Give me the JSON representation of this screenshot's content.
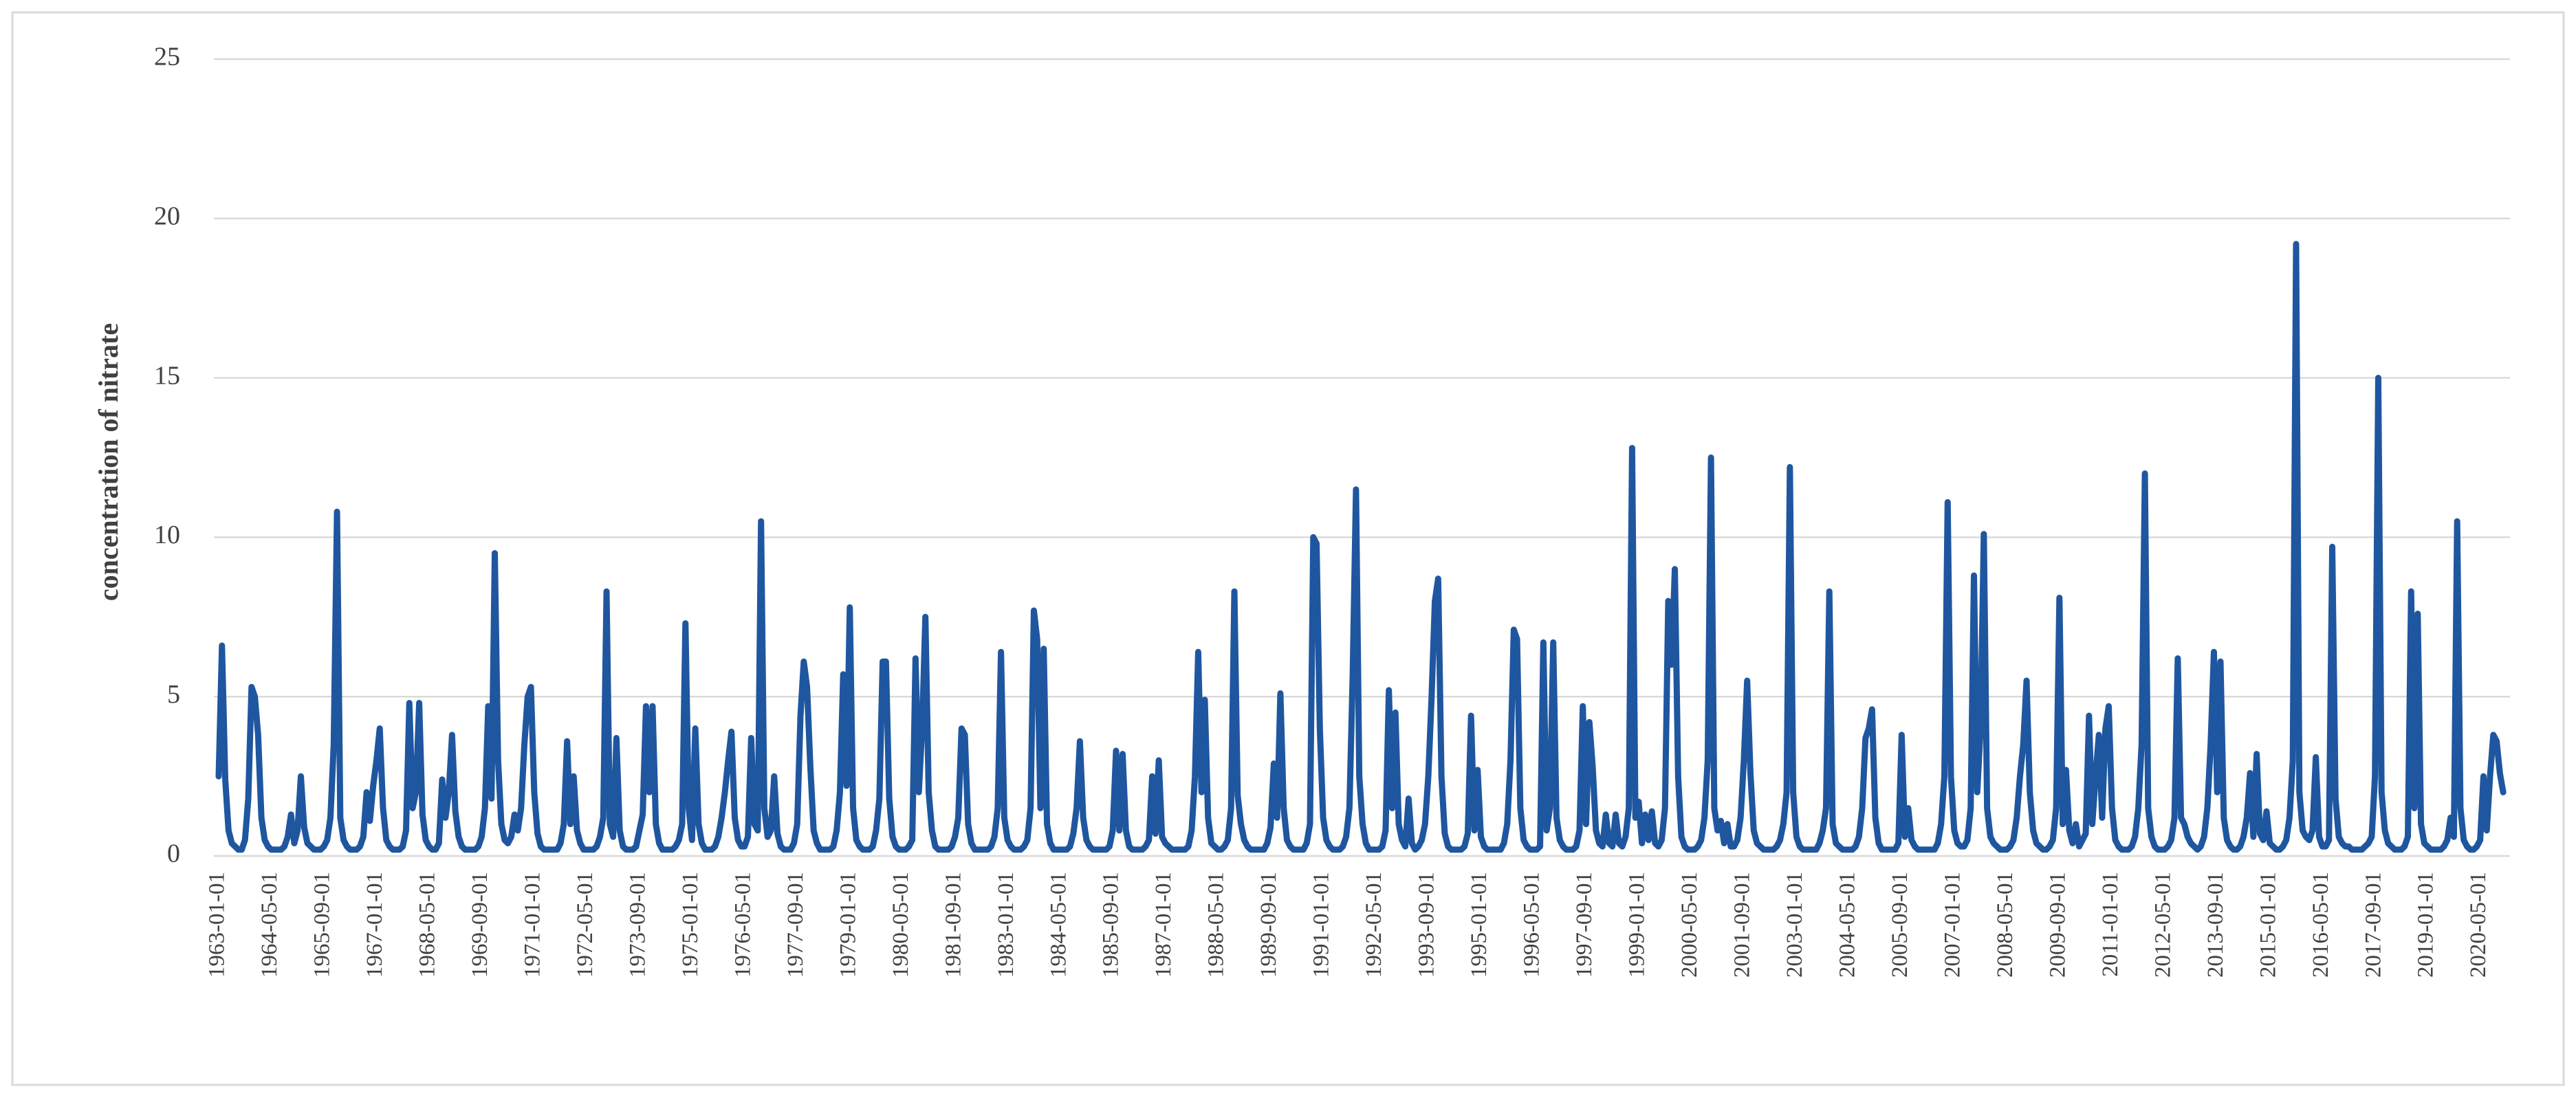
{
  "chart_data": {
    "type": "line",
    "ylabel": "concentration of nitrate",
    "color": "#1f56a0",
    "grid": true,
    "ylim": [
      0,
      25
    ],
    "yticks": [
      0,
      5,
      10,
      15,
      20,
      25
    ],
    "categories": [
      "1963-01-01",
      null,
      null,
      null,
      null,
      null,
      null,
      null,
      null,
      null,
      null,
      null,
      null,
      null,
      null,
      null,
      "1964-05-01",
      null,
      null,
      null,
      null,
      null,
      null,
      null,
      null,
      null,
      null,
      null,
      null,
      null,
      null,
      null,
      "1965-09-01",
      null,
      null,
      null,
      null,
      null,
      null,
      null,
      null,
      null,
      null,
      null,
      null,
      null,
      null,
      null,
      "1967-01-01",
      null,
      null,
      null,
      null,
      null,
      null,
      null,
      null,
      null,
      null,
      null,
      null,
      null,
      null,
      null,
      "1968-05-01",
      null,
      null,
      null,
      null,
      null,
      null,
      null,
      null,
      null,
      null,
      null,
      null,
      null,
      null,
      null,
      "1969-09-01",
      null,
      null,
      null,
      null,
      null,
      null,
      null,
      null,
      null,
      null,
      null,
      null,
      null,
      null,
      null,
      "1971-01-01",
      null,
      null,
      null,
      null,
      null,
      null,
      null,
      null,
      null,
      null,
      null,
      null,
      null,
      null,
      null,
      "1972-05-01",
      null,
      null,
      null,
      null,
      null,
      null,
      null,
      null,
      null,
      null,
      null,
      null,
      null,
      null,
      null,
      "1973-09-01",
      null,
      null,
      null,
      null,
      null,
      null,
      null,
      null,
      null,
      null,
      null,
      null,
      null,
      null,
      null,
      "1975-01-01",
      null,
      null,
      null,
      null,
      null,
      null,
      null,
      null,
      null,
      null,
      null,
      null,
      null,
      null,
      null,
      "1976-05-01",
      null,
      null,
      null,
      null,
      null,
      null,
      null,
      null,
      null,
      null,
      null,
      null,
      null,
      null,
      null,
      "1977-09-01",
      null,
      null,
      null,
      null,
      null,
      null,
      null,
      null,
      null,
      null,
      null,
      null,
      null,
      null,
      null,
      "1979-01-01",
      null,
      null,
      null,
      null,
      null,
      null,
      null,
      null,
      null,
      null,
      null,
      null,
      null,
      null,
      null,
      "1980-05-01",
      null,
      null,
      null,
      null,
      null,
      null,
      null,
      null,
      null,
      null,
      null,
      null,
      null,
      null,
      null,
      "1981-09-01",
      null,
      null,
      null,
      null,
      null,
      null,
      null,
      null,
      null,
      null,
      null,
      null,
      null,
      null,
      null,
      "1983-01-01",
      null,
      null,
      null,
      null,
      null,
      null,
      null,
      null,
      null,
      null,
      null,
      null,
      null,
      null,
      null,
      "1984-05-01",
      null,
      null,
      null,
      null,
      null,
      null,
      null,
      null,
      null,
      null,
      null,
      null,
      null,
      null,
      null,
      "1985-09-01",
      null,
      null,
      null,
      null,
      null,
      null,
      null,
      null,
      null,
      null,
      null,
      null,
      null,
      null,
      null,
      "1987-01-01",
      null,
      null,
      null,
      null,
      null,
      null,
      null,
      null,
      null,
      null,
      null,
      null,
      null,
      null,
      null,
      "1988-05-01",
      null,
      null,
      null,
      null,
      null,
      null,
      null,
      null,
      null,
      null,
      null,
      null,
      null,
      null,
      null,
      "1989-09-01",
      null,
      null,
      null,
      null,
      null,
      null,
      null,
      null,
      null,
      null,
      null,
      null,
      null,
      null,
      null,
      "1991-01-01",
      null,
      null,
      null,
      null,
      null,
      null,
      null,
      null,
      null,
      null,
      null,
      null,
      null,
      null,
      null,
      "1992-05-01",
      null,
      null,
      null,
      null,
      null,
      null,
      null,
      null,
      null,
      null,
      null,
      null,
      null,
      null,
      null,
      "1993-09-01",
      null,
      null,
      null,
      null,
      null,
      null,
      null,
      null,
      null,
      null,
      null,
      null,
      null,
      null,
      null,
      "1995-01-01",
      null,
      null,
      null,
      null,
      null,
      null,
      null,
      null,
      null,
      null,
      null,
      null,
      null,
      null,
      null,
      "1996-05-01",
      null,
      null,
      null,
      null,
      null,
      null,
      null,
      null,
      null,
      null,
      null,
      null,
      null,
      null,
      null,
      "1997-09-01",
      null,
      null,
      null,
      null,
      null,
      null,
      null,
      null,
      null,
      null,
      null,
      null,
      null,
      null,
      null,
      "1999-01-01",
      null,
      null,
      null,
      null,
      null,
      null,
      null,
      null,
      null,
      null,
      null,
      null,
      null,
      null,
      null,
      "2000-05-01",
      null,
      null,
      null,
      null,
      null,
      null,
      null,
      null,
      null,
      null,
      null,
      null,
      null,
      null,
      null,
      "2001-09-01",
      null,
      null,
      null,
      null,
      null,
      null,
      null,
      null,
      null,
      null,
      null,
      null,
      null,
      null,
      null,
      "2003-01-01",
      null,
      null,
      null,
      null,
      null,
      null,
      null,
      null,
      null,
      null,
      null,
      null,
      null,
      null,
      null,
      "2004-05-01",
      null,
      null,
      null,
      null,
      null,
      null,
      null,
      null,
      null,
      null,
      null,
      null,
      null,
      null,
      null,
      "2005-09-01",
      null,
      null,
      null,
      null,
      null,
      null,
      null,
      null,
      null,
      null,
      null,
      null,
      null,
      null,
      null,
      "2007-01-01",
      null,
      null,
      null,
      null,
      null,
      null,
      null,
      null,
      null,
      null,
      null,
      null,
      null,
      null,
      null,
      "2008-05-01",
      null,
      null,
      null,
      null,
      null,
      null,
      null,
      null,
      null,
      null,
      null,
      null,
      null,
      null,
      null,
      "2009-09-01",
      null,
      null,
      null,
      null,
      null,
      null,
      null,
      null,
      null,
      null,
      null,
      null,
      null,
      null,
      null,
      "2011-01-01",
      null,
      null,
      null,
      null,
      null,
      null,
      null,
      null,
      null,
      null,
      null,
      null,
      null,
      null,
      null,
      "2012-05-01",
      null,
      null,
      null,
      null,
      null,
      null,
      null,
      null,
      null,
      null,
      null,
      null,
      null,
      null,
      null,
      "2013-09-01",
      null,
      null,
      null,
      null,
      null,
      null,
      null,
      null,
      null,
      null,
      null,
      null,
      null,
      null,
      null,
      "2015-01-01",
      null,
      null,
      null,
      null,
      null,
      null,
      null,
      null,
      null,
      null,
      null,
      null,
      null,
      null,
      null,
      "2016-05-01",
      null,
      null,
      null,
      null,
      null,
      null,
      null,
      null,
      null,
      null,
      null,
      null,
      null,
      null,
      null,
      "2017-09-01",
      null,
      null,
      null,
      null,
      null,
      null,
      null,
      null,
      null,
      null,
      null,
      null,
      null,
      null,
      null,
      "2019-01-01",
      null,
      null,
      null,
      null,
      null,
      null,
      null,
      null,
      null,
      null,
      null,
      null,
      null,
      null,
      null,
      "2020-05-01",
      null,
      null,
      null,
      null,
      null,
      null,
      null
    ],
    "values": [
      2.5,
      6.6,
      2.4,
      0.8,
      0.4,
      0.3,
      0.2,
      0.2,
      0.5,
      1.8,
      5.3,
      5.0,
      3.8,
      1.2,
      0.5,
      0.3,
      0.2,
      0.2,
      0.2,
      0.2,
      0.3,
      0.6,
      1.3,
      0.4,
      0.8,
      2.5,
      0.9,
      0.4,
      0.3,
      0.2,
      0.2,
      0.2,
      0.3,
      0.5,
      1.2,
      3.5,
      10.8,
      1.2,
      0.5,
      0.3,
      0.2,
      0.2,
      0.2,
      0.3,
      0.6,
      2.0,
      1.1,
      2.2,
      3.0,
      4.0,
      1.5,
      0.5,
      0.3,
      0.2,
      0.2,
      0.2,
      0.3,
      0.8,
      4.8,
      1.5,
      2.0,
      4.8,
      1.3,
      0.5,
      0.3,
      0.2,
      0.2,
      0.4,
      2.4,
      1.2,
      2.0,
      3.8,
      1.4,
      0.6,
      0.3,
      0.2,
      0.2,
      0.2,
      0.2,
      0.3,
      0.6,
      1.5,
      4.7,
      1.8,
      9.5,
      3.0,
      1.0,
      0.5,
      0.4,
      0.6,
      1.3,
      0.8,
      1.5,
      3.5,
      5.0,
      5.3,
      2.0,
      0.7,
      0.3,
      0.2,
      0.2,
      0.2,
      0.2,
      0.2,
      0.4,
      1.0,
      3.6,
      1.0,
      2.5,
      0.8,
      0.4,
      0.2,
      0.2,
      0.2,
      0.2,
      0.3,
      0.6,
      1.2,
      8.3,
      1.0,
      0.6,
      3.7,
      0.8,
      0.3,
      0.2,
      0.2,
      0.2,
      0.3,
      0.8,
      1.3,
      4.7,
      2.0,
      4.7,
      1.0,
      0.4,
      0.2,
      0.2,
      0.2,
      0.2,
      0.3,
      0.5,
      1.0,
      7.3,
      1.5,
      0.5,
      4.0,
      1.0,
      0.4,
      0.2,
      0.2,
      0.2,
      0.3,
      0.6,
      1.2,
      2.0,
      3.0,
      3.9,
      1.2,
      0.5,
      0.3,
      0.3,
      0.6,
      3.7,
      1.0,
      0.8,
      10.5,
      1.5,
      0.6,
      0.8,
      2.5,
      0.7,
      0.3,
      0.2,
      0.2,
      0.2,
      0.4,
      1.0,
      4.4,
      6.1,
      5.3,
      2.8,
      0.8,
      0.4,
      0.2,
      0.2,
      0.2,
      0.2,
      0.3,
      0.8,
      2.0,
      5.7,
      2.2,
      7.8,
      1.5,
      0.5,
      0.3,
      0.2,
      0.2,
      0.2,
      0.3,
      0.8,
      1.8,
      6.1,
      6.1,
      1.8,
      0.6,
      0.3,
      0.2,
      0.2,
      0.2,
      0.3,
      0.5,
      6.2,
      2.0,
      4.0,
      7.5,
      2.0,
      0.8,
      0.3,
      0.2,
      0.2,
      0.2,
      0.2,
      0.3,
      0.6,
      1.2,
      4.0,
      3.8,
      1.0,
      0.4,
      0.2,
      0.2,
      0.2,
      0.2,
      0.2,
      0.3,
      0.6,
      1.5,
      6.4,
      1.2,
      0.5,
      0.3,
      0.2,
      0.2,
      0.2,
      0.3,
      0.5,
      1.5,
      7.7,
      6.8,
      1.5,
      6.5,
      1.0,
      0.4,
      0.2,
      0.2,
      0.2,
      0.2,
      0.2,
      0.3,
      0.7,
      1.5,
      3.6,
      1.2,
      0.5,
      0.3,
      0.2,
      0.2,
      0.2,
      0.2,
      0.2,
      0.3,
      0.8,
      3.3,
      0.8,
      3.2,
      0.8,
      0.3,
      0.2,
      0.2,
      0.2,
      0.2,
      0.3,
      0.5,
      2.5,
      0.7,
      3.0,
      0.6,
      0.4,
      0.3,
      0.2,
      0.2,
      0.2,
      0.2,
      0.2,
      0.3,
      0.8,
      2.5,
      6.4,
      2.0,
      4.9,
      1.2,
      0.4,
      0.3,
      0.2,
      0.2,
      0.3,
      0.5,
      1.5,
      8.3,
      1.9,
      1.0,
      0.5,
      0.3,
      0.2,
      0.2,
      0.2,
      0.2,
      0.2,
      0.4,
      0.9,
      2.9,
      1.2,
      5.1,
      1.5,
      0.5,
      0.3,
      0.2,
      0.2,
      0.2,
      0.2,
      0.4,
      1.0,
      10.0,
      9.8,
      4.0,
      1.2,
      0.5,
      0.3,
      0.2,
      0.2,
      0.2,
      0.3,
      0.6,
      1.5,
      5.7,
      11.5,
      2.5,
      1.0,
      0.4,
      0.2,
      0.2,
      0.2,
      0.2,
      0.3,
      0.8,
      5.2,
      1.5,
      4.5,
      1.0,
      0.5,
      0.3,
      1.8,
      0.4,
      0.2,
      0.3,
      0.5,
      1.0,
      2.5,
      5.0,
      8.0,
      8.7,
      2.5,
      0.7,
      0.3,
      0.2,
      0.2,
      0.2,
      0.2,
      0.3,
      0.7,
      4.4,
      0.8,
      2.7,
      0.6,
      0.3,
      0.2,
      0.2,
      0.2,
      0.2,
      0.2,
      0.4,
      1.0,
      3.0,
      7.1,
      6.8,
      1.5,
      0.5,
      0.3,
      0.2,
      0.2,
      0.2,
      0.3,
      6.7,
      0.8,
      1.5,
      6.7,
      1.2,
      0.5,
      0.3,
      0.2,
      0.2,
      0.2,
      0.3,
      0.8,
      4.7,
      1.0,
      4.2,
      2.8,
      0.8,
      0.4,
      0.3,
      1.3,
      0.4,
      0.3,
      1.3,
      0.4,
      0.3,
      0.6,
      1.5,
      12.8,
      1.2,
      1.7,
      0.4,
      1.3,
      0.5,
      1.4,
      0.4,
      0.3,
      0.5,
      1.5,
      8.0,
      6.0,
      9.0,
      2.5,
      0.6,
      0.3,
      0.2,
      0.2,
      0.2,
      0.3,
      0.5,
      1.2,
      3.0,
      12.5,
      1.5,
      0.8,
      1.1,
      0.4,
      1.0,
      0.3,
      0.3,
      0.5,
      1.2,
      3.0,
      5.5,
      2.6,
      0.8,
      0.4,
      0.3,
      0.2,
      0.2,
      0.2,
      0.2,
      0.3,
      0.5,
      1.0,
      2.0,
      12.2,
      2.0,
      0.6,
      0.3,
      0.2,
      0.2,
      0.2,
      0.2,
      0.2,
      0.4,
      0.8,
      1.5,
      8.3,
      1.0,
      0.4,
      0.3,
      0.2,
      0.2,
      0.2,
      0.2,
      0.3,
      0.6,
      1.5,
      3.7,
      4.0,
      4.6,
      1.2,
      0.4,
      0.2,
      0.2,
      0.2,
      0.2,
      0.2,
      0.4,
      3.8,
      0.6,
      1.5,
      0.5,
      0.3,
      0.2,
      0.2,
      0.2,
      0.2,
      0.2,
      0.2,
      0.4,
      1.0,
      2.5,
      11.1,
      2.5,
      0.8,
      0.4,
      0.3,
      0.3,
      0.5,
      1.5,
      8.8,
      2.0,
      4.0,
      10.1,
      1.5,
      0.6,
      0.4,
      0.3,
      0.2,
      0.2,
      0.2,
      0.3,
      0.5,
      1.2,
      2.5,
      3.5,
      5.5,
      2.0,
      0.8,
      0.4,
      0.3,
      0.2,
      0.2,
      0.3,
      0.5,
      1.5,
      8.1,
      1.0,
      2.7,
      0.8,
      0.4,
      1.0,
      0.3,
      0.5,
      0.7,
      4.4,
      1.0,
      2.5,
      3.8,
      1.2,
      4.0,
      4.7,
      1.5,
      0.5,
      0.3,
      0.2,
      0.2,
      0.2,
      0.3,
      0.6,
      1.5,
      3.5,
      12.0,
      1.5,
      0.6,
      0.3,
      0.2,
      0.2,
      0.2,
      0.3,
      0.5,
      1.2,
      6.2,
      1.2,
      1.0,
      0.6,
      0.4,
      0.3,
      0.2,
      0.3,
      0.6,
      1.5,
      3.5,
      6.4,
      2.0,
      6.1,
      1.2,
      0.5,
      0.3,
      0.2,
      0.2,
      0.3,
      0.6,
      1.2,
      2.6,
      0.6,
      3.2,
      0.7,
      0.5,
      1.4,
      0.4,
      0.3,
      0.2,
      0.2,
      0.3,
      0.5,
      1.2,
      3.0,
      19.2,
      2.0,
      0.8,
      0.6,
      0.5,
      0.8,
      3.1,
      0.6,
      0.3,
      0.3,
      0.5,
      9.7,
      1.8,
      0.6,
      0.4,
      0.3,
      0.3,
      0.2,
      0.2,
      0.2,
      0.2,
      0.3,
      0.4,
      0.6,
      2.5,
      15.0,
      2.0,
      0.8,
      0.4,
      0.3,
      0.2,
      0.2,
      0.2,
      0.3,
      0.6,
      8.3,
      1.5,
      7.6,
      1.0,
      0.4,
      0.3,
      0.2,
      0.2,
      0.2,
      0.2,
      0.3,
      0.5,
      1.2,
      0.6,
      10.5,
      1.5,
      0.5,
      0.3,
      0.2,
      0.2,
      0.3,
      0.5,
      2.5,
      0.8,
      2.5,
      3.8,
      3.6,
      2.6,
      2.0
    ]
  }
}
